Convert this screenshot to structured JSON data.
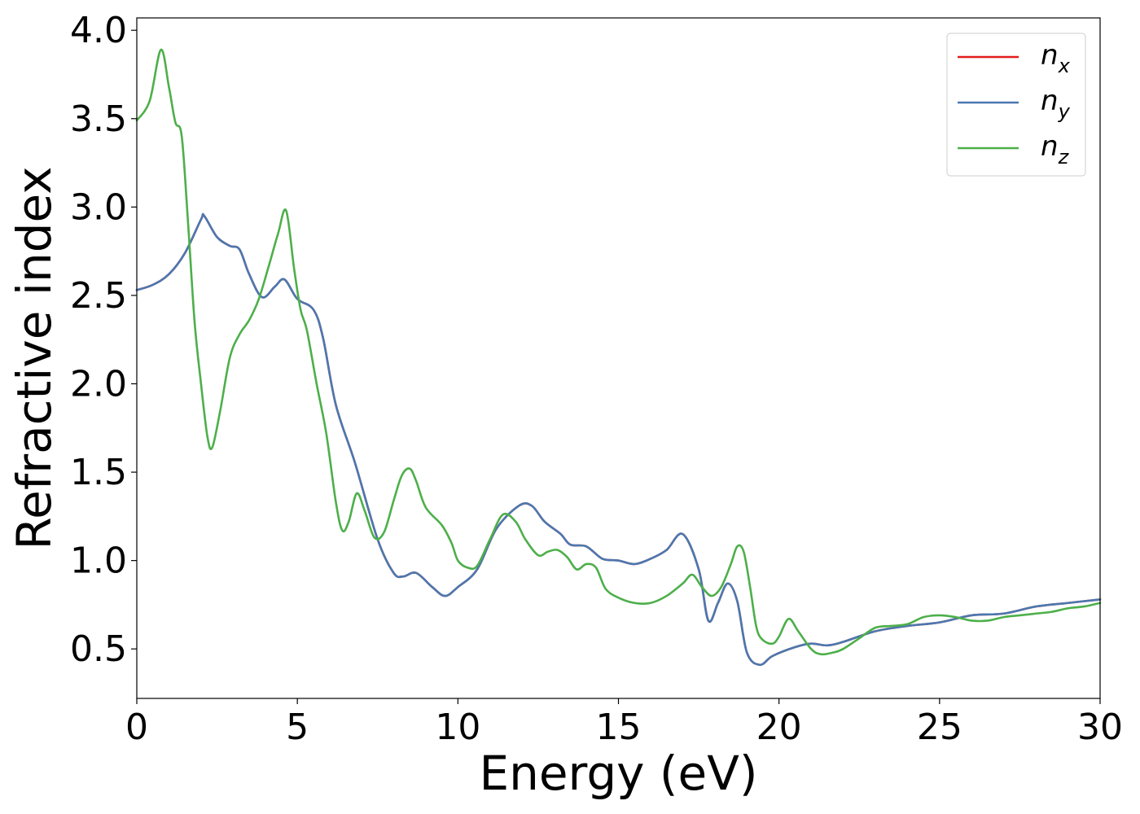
{
  "chart_data": {
    "type": "line",
    "xlabel": "Energy (eV)",
    "ylabel": "Refractive index",
    "xlim": [
      0,
      30
    ],
    "ylim": [
      0.22,
      4.07
    ],
    "xticks": [
      0,
      5,
      10,
      15,
      20,
      25,
      30
    ],
    "xtick_labels": [
      "0",
      "5",
      "10",
      "15",
      "20",
      "25",
      "30"
    ],
    "yticks": [
      0.5,
      1.0,
      1.5,
      2.0,
      2.5,
      3.0,
      3.5,
      4.0
    ],
    "ytick_labels": [
      "0.5",
      "1.0",
      "1.5",
      "2.0",
      "2.5",
      "3.0",
      "3.5",
      "4.0"
    ],
    "grid": false,
    "legend": "top-right",
    "series": [
      {
        "name": "n_x",
        "label_base": "n",
        "label_sub": "x",
        "color": "#e41a1c",
        "x": [
          0,
          0.5,
          1.0,
          1.5,
          2.0,
          2.1,
          2.5,
          2.9,
          3.2,
          3.5,
          3.9,
          4.3,
          4.6,
          5.0,
          5.5,
          5.8,
          6.2,
          6.8,
          7.5,
          8.0,
          8.3,
          8.7,
          9.2,
          9.6,
          10.0,
          10.6,
          11.2,
          11.9,
          12.3,
          12.7,
          13.2,
          13.5,
          14.0,
          14.5,
          15.0,
          15.5,
          16.0,
          16.5,
          17.0,
          17.5,
          17.8,
          18.1,
          18.4,
          18.7,
          19.0,
          19.4,
          19.8,
          20.5,
          21.0,
          21.5,
          22.0,
          23.0,
          24.0,
          25.0,
          26.0,
          27.0,
          28.0,
          29.0,
          30.0
        ],
        "y": [
          2.53,
          2.56,
          2.62,
          2.74,
          2.93,
          2.95,
          2.83,
          2.78,
          2.76,
          2.62,
          2.49,
          2.55,
          2.59,
          2.48,
          2.42,
          2.26,
          1.88,
          1.55,
          1.12,
          0.93,
          0.91,
          0.93,
          0.85,
          0.8,
          0.85,
          0.95,
          1.18,
          1.31,
          1.31,
          1.22,
          1.15,
          1.09,
          1.08,
          1.01,
          1.0,
          0.98,
          1.01,
          1.06,
          1.15,
          0.95,
          0.66,
          0.76,
          0.87,
          0.77,
          0.48,
          0.41,
          0.46,
          0.51,
          0.53,
          0.52,
          0.54,
          0.6,
          0.63,
          0.65,
          0.69,
          0.7,
          0.74,
          0.76,
          0.78
        ]
      },
      {
        "name": "n_y",
        "label_base": "n",
        "label_sub": "y",
        "color": "#4a78b0",
        "x": [
          0,
          0.5,
          1.0,
          1.5,
          2.0,
          2.1,
          2.5,
          2.9,
          3.2,
          3.5,
          3.9,
          4.3,
          4.6,
          5.0,
          5.5,
          5.8,
          6.2,
          6.8,
          7.5,
          8.0,
          8.3,
          8.7,
          9.2,
          9.6,
          10.0,
          10.6,
          11.2,
          11.9,
          12.3,
          12.7,
          13.2,
          13.5,
          14.0,
          14.5,
          15.0,
          15.5,
          16.0,
          16.5,
          17.0,
          17.5,
          17.8,
          18.1,
          18.4,
          18.7,
          19.0,
          19.4,
          19.8,
          20.5,
          21.0,
          21.5,
          22.0,
          23.0,
          24.0,
          25.0,
          26.0,
          27.0,
          28.0,
          29.0,
          30.0
        ],
        "y": [
          2.53,
          2.56,
          2.62,
          2.74,
          2.93,
          2.95,
          2.83,
          2.78,
          2.76,
          2.62,
          2.49,
          2.55,
          2.59,
          2.48,
          2.42,
          2.26,
          1.88,
          1.55,
          1.12,
          0.93,
          0.91,
          0.93,
          0.85,
          0.8,
          0.85,
          0.95,
          1.18,
          1.31,
          1.31,
          1.22,
          1.15,
          1.09,
          1.08,
          1.01,
          1.0,
          0.98,
          1.01,
          1.06,
          1.15,
          0.95,
          0.66,
          0.76,
          0.87,
          0.77,
          0.48,
          0.41,
          0.46,
          0.51,
          0.53,
          0.52,
          0.54,
          0.6,
          0.63,
          0.65,
          0.69,
          0.7,
          0.74,
          0.76,
          0.78
        ]
      },
      {
        "name": "n_z",
        "label_base": "n",
        "label_sub": "z",
        "color": "#4daf4a",
        "x": [
          0,
          0.4,
          0.75,
          1.0,
          1.2,
          1.4,
          1.6,
          1.8,
          2.0,
          2.2,
          2.35,
          2.6,
          2.9,
          3.2,
          3.5,
          3.8,
          4.1,
          4.4,
          4.65,
          4.9,
          5.1,
          5.3,
          5.6,
          5.9,
          6.2,
          6.4,
          6.6,
          6.85,
          7.1,
          7.4,
          7.7,
          8.0,
          8.25,
          8.5,
          8.7,
          9.0,
          9.5,
          9.8,
          10.0,
          10.3,
          10.6,
          11.0,
          11.4,
          11.8,
          12.1,
          12.5,
          12.8,
          13.1,
          13.4,
          13.7,
          14.0,
          14.3,
          14.6,
          15.0,
          15.5,
          16.0,
          16.5,
          17.0,
          17.3,
          17.6,
          17.9,
          18.2,
          18.5,
          18.7,
          18.9,
          19.1,
          19.3,
          19.5,
          19.8,
          20.0,
          20.3,
          20.6,
          21.0,
          21.3,
          21.7,
          22.0,
          22.5,
          23.0,
          23.5,
          24.0,
          24.5,
          25.0,
          25.5,
          26.0,
          26.5,
          27.0,
          27.5,
          28.0,
          28.5,
          29.0,
          29.5,
          30.0
        ],
        "y": [
          3.49,
          3.6,
          3.89,
          3.68,
          3.48,
          3.4,
          2.9,
          2.35,
          2.0,
          1.7,
          1.64,
          1.85,
          2.15,
          2.28,
          2.36,
          2.48,
          2.66,
          2.85,
          2.98,
          2.65,
          2.42,
          2.3,
          2.0,
          1.72,
          1.33,
          1.17,
          1.22,
          1.38,
          1.28,
          1.13,
          1.16,
          1.34,
          1.48,
          1.52,
          1.45,
          1.3,
          1.2,
          1.1,
          1.0,
          0.96,
          0.97,
          1.12,
          1.26,
          1.22,
          1.12,
          1.03,
          1.05,
          1.06,
          1.02,
          0.95,
          0.98,
          0.96,
          0.84,
          0.79,
          0.76,
          0.76,
          0.8,
          0.87,
          0.92,
          0.85,
          0.8,
          0.85,
          0.98,
          1.08,
          1.05,
          0.85,
          0.62,
          0.55,
          0.53,
          0.57,
          0.67,
          0.6,
          0.5,
          0.47,
          0.48,
          0.5,
          0.56,
          0.62,
          0.63,
          0.64,
          0.68,
          0.69,
          0.68,
          0.66,
          0.66,
          0.68,
          0.69,
          0.7,
          0.71,
          0.73,
          0.74,
          0.76
        ]
      }
    ]
  }
}
